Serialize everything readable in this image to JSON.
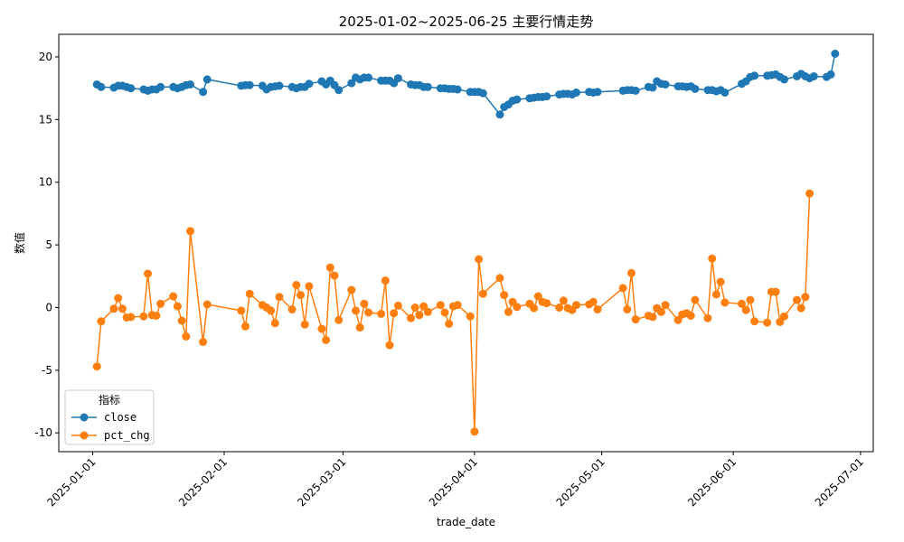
{
  "chart_data": {
    "type": "line",
    "title": "2025-01-02~2025-06-25 主要行情走势",
    "xlabel": "trade_date",
    "ylabel": "数值",
    "xlim": [
      "2024-12-24",
      "2025-07-04"
    ],
    "ylim": [
      -11.5,
      21.8
    ],
    "x_ticks": [
      "2025-01-01",
      "2025-02-01",
      "2025-03-01",
      "2025-04-01",
      "2025-05-01",
      "2025-06-01",
      "2025-07-01"
    ],
    "y_ticks": [
      -10,
      -5,
      0,
      5,
      10,
      15,
      20
    ],
    "legend": {
      "title": "指标",
      "placement": "lower-left"
    },
    "grid": false,
    "series": [
      {
        "name": "close",
        "color": "#1f77b4",
        "points": [
          [
            "2025-01-02",
            17.8
          ],
          [
            "2025-01-03",
            17.6
          ],
          [
            "2025-01-06",
            17.55
          ],
          [
            "2025-01-07",
            17.7
          ],
          [
            "2025-01-08",
            17.7
          ],
          [
            "2025-01-09",
            17.6
          ],
          [
            "2025-01-10",
            17.5
          ],
          [
            "2025-01-13",
            17.4
          ],
          [
            "2025-01-14",
            17.3
          ],
          [
            "2025-01-15",
            17.4
          ],
          [
            "2025-01-16",
            17.4
          ],
          [
            "2025-01-17",
            17.6
          ],
          [
            "2025-01-20",
            17.6
          ],
          [
            "2025-01-21",
            17.5
          ],
          [
            "2025-01-22",
            17.6
          ],
          [
            "2025-01-23",
            17.75
          ],
          [
            "2025-01-24",
            17.8
          ],
          [
            "2025-01-27",
            17.2
          ],
          [
            "2025-01-28",
            18.2
          ],
          [
            "2025-02-05",
            17.7
          ],
          [
            "2025-02-06",
            17.75
          ],
          [
            "2025-02-07",
            17.75
          ],
          [
            "2025-02-10",
            17.7
          ],
          [
            "2025-02-11",
            17.4
          ],
          [
            "2025-02-12",
            17.6
          ],
          [
            "2025-02-13",
            17.65
          ],
          [
            "2025-02-14",
            17.7
          ],
          [
            "2025-02-17",
            17.6
          ],
          [
            "2025-02-18",
            17.5
          ],
          [
            "2025-02-19",
            17.6
          ],
          [
            "2025-02-20",
            17.6
          ],
          [
            "2025-02-21",
            17.85
          ],
          [
            "2025-02-24",
            18.05
          ],
          [
            "2025-02-25",
            17.8
          ],
          [
            "2025-02-26",
            18.1
          ],
          [
            "2025-02-27",
            17.75
          ],
          [
            "2025-02-28",
            17.35
          ],
          [
            "2025-03-03",
            17.9
          ],
          [
            "2025-03-04",
            18.35
          ],
          [
            "2025-03-05",
            18.2
          ],
          [
            "2025-03-06",
            18.35
          ],
          [
            "2025-03-07",
            18.35
          ],
          [
            "2025-03-10",
            18.1
          ],
          [
            "2025-03-11",
            18.1
          ],
          [
            "2025-03-12",
            18.1
          ],
          [
            "2025-03-13",
            17.9
          ],
          [
            "2025-03-14",
            18.3
          ],
          [
            "2025-03-17",
            17.8
          ],
          [
            "2025-03-18",
            17.75
          ],
          [
            "2025-03-19",
            17.75
          ],
          [
            "2025-03-20",
            17.6
          ],
          [
            "2025-03-21",
            17.6
          ],
          [
            "2025-03-24",
            17.5
          ],
          [
            "2025-03-25",
            17.5
          ],
          [
            "2025-03-26",
            17.45
          ],
          [
            "2025-03-27",
            17.45
          ],
          [
            "2025-03-28",
            17.4
          ],
          [
            "2025-03-31",
            17.2
          ],
          [
            "2025-04-01",
            17.2
          ],
          [
            "2025-04-02",
            17.2
          ],
          [
            "2025-04-03",
            17.1
          ],
          [
            "2025-04-07",
            15.4
          ],
          [
            "2025-04-08",
            16.0
          ],
          [
            "2025-04-09",
            16.2
          ],
          [
            "2025-04-10",
            16.5
          ],
          [
            "2025-04-11",
            16.6
          ],
          [
            "2025-04-14",
            16.7
          ],
          [
            "2025-04-15",
            16.75
          ],
          [
            "2025-04-16",
            16.8
          ],
          [
            "2025-04-17",
            16.8
          ],
          [
            "2025-04-18",
            16.85
          ],
          [
            "2025-04-21",
            17.0
          ],
          [
            "2025-04-22",
            17.05
          ],
          [
            "2025-04-23",
            17.05
          ],
          [
            "2025-04-24",
            17.0
          ],
          [
            "2025-04-25",
            17.15
          ],
          [
            "2025-04-28",
            17.2
          ],
          [
            "2025-04-29",
            17.15
          ],
          [
            "2025-04-30",
            17.2
          ],
          [
            "2025-05-06",
            17.3
          ],
          [
            "2025-05-07",
            17.35
          ],
          [
            "2025-05-08",
            17.35
          ],
          [
            "2025-05-09",
            17.3
          ],
          [
            "2025-05-12",
            17.6
          ],
          [
            "2025-05-13",
            17.55
          ],
          [
            "2025-05-14",
            18.05
          ],
          [
            "2025-05-15",
            17.85
          ],
          [
            "2025-05-16",
            17.8
          ],
          [
            "2025-05-19",
            17.65
          ],
          [
            "2025-05-20",
            17.65
          ],
          [
            "2025-05-21",
            17.6
          ],
          [
            "2025-05-22",
            17.65
          ],
          [
            "2025-05-23",
            17.45
          ],
          [
            "2025-05-26",
            17.35
          ],
          [
            "2025-05-27",
            17.35
          ],
          [
            "2025-05-28",
            17.25
          ],
          [
            "2025-05-29",
            17.35
          ],
          [
            "2025-05-30",
            17.15
          ],
          [
            "2025-06-03",
            17.85
          ],
          [
            "2025-06-04",
            18.05
          ],
          [
            "2025-06-05",
            18.4
          ],
          [
            "2025-06-06",
            18.5
          ],
          [
            "2025-06-09",
            18.5
          ],
          [
            "2025-06-10",
            18.55
          ],
          [
            "2025-06-11",
            18.6
          ],
          [
            "2025-06-12",
            18.4
          ],
          [
            "2025-06-13",
            18.2
          ],
          [
            "2025-06-16",
            18.45
          ],
          [
            "2025-06-17",
            18.65
          ],
          [
            "2025-06-18",
            18.45
          ],
          [
            "2025-06-19",
            18.3
          ],
          [
            "2025-06-20",
            18.45
          ],
          [
            "2025-06-23",
            18.4
          ],
          [
            "2025-06-24",
            18.6
          ],
          [
            "2025-06-25",
            20.25
          ]
        ]
      },
      {
        "name": "pct_chg",
        "color": "#ff7f0e",
        "points": [
          [
            "2025-01-02",
            -4.7
          ],
          [
            "2025-01-03",
            -1.1
          ],
          [
            "2025-01-06",
            -0.1
          ],
          [
            "2025-01-07",
            0.75
          ],
          [
            "2025-01-08",
            -0.1
          ],
          [
            "2025-01-09",
            -0.8
          ],
          [
            "2025-01-10",
            -0.75
          ],
          [
            "2025-01-13",
            -0.7
          ],
          [
            "2025-01-14",
            2.7
          ],
          [
            "2025-01-15",
            -0.6
          ],
          [
            "2025-01-16",
            -0.65
          ],
          [
            "2025-01-17",
            0.3
          ],
          [
            "2025-01-20",
            0.9
          ],
          [
            "2025-01-21",
            0.1
          ],
          [
            "2025-01-22",
            -1.05
          ],
          [
            "2025-01-23",
            -2.3
          ],
          [
            "2025-01-24",
            6.1
          ],
          [
            "2025-01-27",
            -2.75
          ],
          [
            "2025-01-28",
            0.25
          ],
          [
            "2025-02-05",
            -0.25
          ],
          [
            "2025-02-06",
            -1.5
          ],
          [
            "2025-02-07",
            1.1
          ],
          [
            "2025-02-10",
            0.2
          ],
          [
            "2025-02-11",
            0.0
          ],
          [
            "2025-02-12",
            -0.25
          ],
          [
            "2025-02-13",
            -1.25
          ],
          [
            "2025-02-14",
            0.85
          ],
          [
            "2025-02-17",
            -0.15
          ],
          [
            "2025-02-18",
            1.8
          ],
          [
            "2025-02-19",
            1.0
          ],
          [
            "2025-02-20",
            -1.35
          ],
          [
            "2025-02-21",
            1.7
          ],
          [
            "2025-02-24",
            -1.7
          ],
          [
            "2025-02-25",
            -2.6
          ],
          [
            "2025-02-26",
            3.2
          ],
          [
            "2025-02-27",
            2.55
          ],
          [
            "2025-02-28",
            -1.0
          ],
          [
            "2025-03-03",
            1.4
          ],
          [
            "2025-03-04",
            -0.25
          ],
          [
            "2025-03-05",
            -1.6
          ],
          [
            "2025-03-06",
            0.3
          ],
          [
            "2025-03-07",
            -0.4
          ],
          [
            "2025-03-10",
            -0.5
          ],
          [
            "2025-03-11",
            2.15
          ],
          [
            "2025-03-12",
            -3.0
          ],
          [
            "2025-03-13",
            -0.45
          ],
          [
            "2025-03-14",
            0.15
          ],
          [
            "2025-03-17",
            -0.85
          ],
          [
            "2025-03-18",
            0.0
          ],
          [
            "2025-03-19",
            -0.6
          ],
          [
            "2025-03-20",
            0.1
          ],
          [
            "2025-03-21",
            -0.35
          ],
          [
            "2025-03-24",
            0.2
          ],
          [
            "2025-03-25",
            -0.4
          ],
          [
            "2025-03-26",
            -1.3
          ],
          [
            "2025-03-27",
            0.1
          ],
          [
            "2025-03-28",
            0.2
          ],
          [
            "2025-03-31",
            -0.7
          ],
          [
            "2025-04-01",
            -9.9
          ],
          [
            "2025-04-02",
            3.85
          ],
          [
            "2025-04-03",
            1.1
          ],
          [
            "2025-04-07",
            2.35
          ],
          [
            "2025-04-08",
            1.0
          ],
          [
            "2025-04-09",
            -0.35
          ],
          [
            "2025-04-10",
            0.45
          ],
          [
            "2025-04-11",
            0.05
          ],
          [
            "2025-04-14",
            0.3
          ],
          [
            "2025-04-15",
            -0.05
          ],
          [
            "2025-04-16",
            0.9
          ],
          [
            "2025-04-17",
            0.45
          ],
          [
            "2025-04-18",
            0.35
          ],
          [
            "2025-04-21",
            0.0
          ],
          [
            "2025-04-22",
            0.55
          ],
          [
            "2025-04-23",
            -0.05
          ],
          [
            "2025-04-24",
            -0.2
          ],
          [
            "2025-04-25",
            0.2
          ],
          [
            "2025-04-28",
            0.25
          ],
          [
            "2025-04-29",
            0.45
          ],
          [
            "2025-04-30",
            -0.15
          ],
          [
            "2025-05-06",
            1.55
          ],
          [
            "2025-05-07",
            -0.15
          ],
          [
            "2025-05-08",
            2.75
          ],
          [
            "2025-05-09",
            -0.95
          ],
          [
            "2025-05-12",
            -0.65
          ],
          [
            "2025-05-13",
            -0.75
          ],
          [
            "2025-05-14",
            -0.05
          ],
          [
            "2025-05-15",
            -0.35
          ],
          [
            "2025-05-16",
            0.2
          ],
          [
            "2025-05-19",
            -1.0
          ],
          [
            "2025-05-20",
            -0.55
          ],
          [
            "2025-05-21",
            -0.45
          ],
          [
            "2025-05-22",
            -0.65
          ],
          [
            "2025-05-23",
            0.6
          ],
          [
            "2025-05-26",
            -0.85
          ],
          [
            "2025-05-27",
            3.9
          ],
          [
            "2025-05-28",
            1.05
          ],
          [
            "2025-05-29",
            2.05
          ],
          [
            "2025-05-30",
            0.4
          ],
          [
            "2025-06-03",
            0.3
          ],
          [
            "2025-06-04",
            -0.2
          ],
          [
            "2025-06-05",
            0.6
          ],
          [
            "2025-06-06",
            -1.1
          ],
          [
            "2025-06-09",
            -1.2
          ],
          [
            "2025-06-10",
            1.25
          ],
          [
            "2025-06-11",
            1.25
          ],
          [
            "2025-06-12",
            -1.15
          ],
          [
            "2025-06-13",
            -0.7
          ],
          [
            "2025-06-16",
            0.6
          ],
          [
            "2025-06-17",
            -0.05
          ],
          [
            "2025-06-18",
            0.85
          ],
          [
            "2025-06-19",
            9.1
          ]
        ]
      }
    ]
  }
}
